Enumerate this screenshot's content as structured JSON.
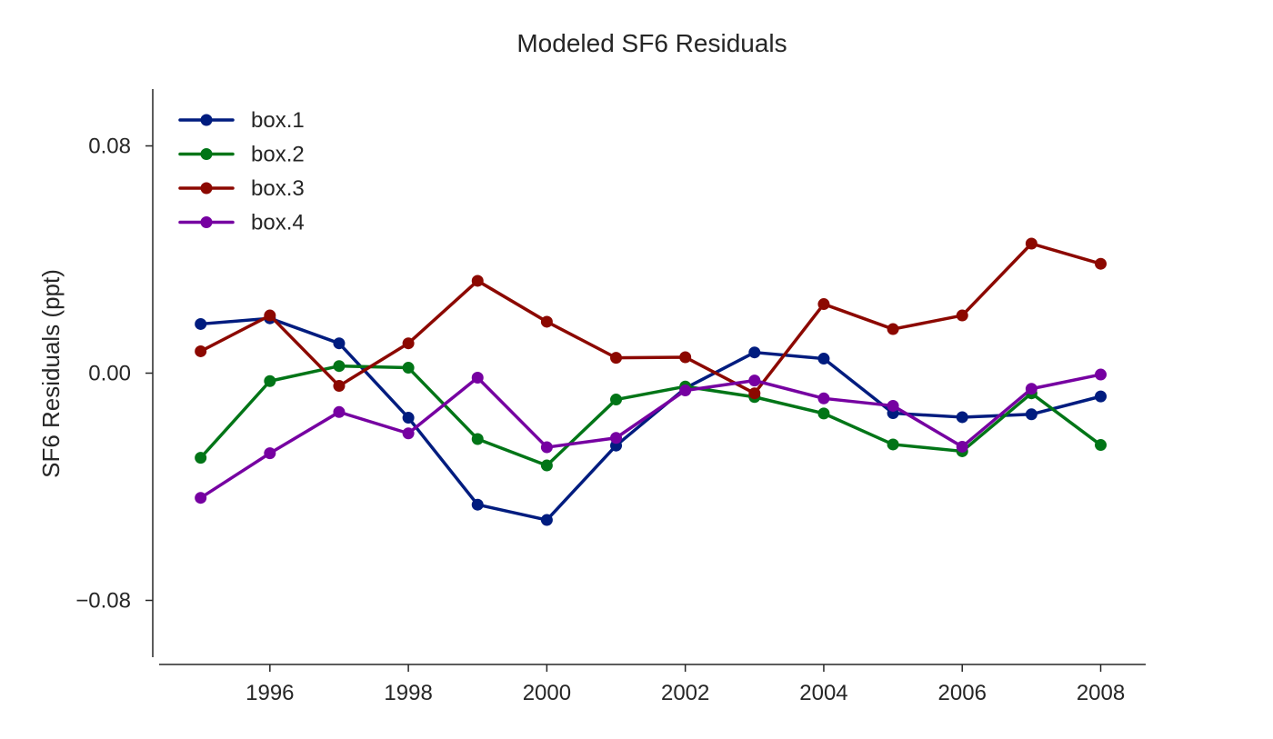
{
  "chart_data": {
    "type": "line",
    "title": "Modeled SF6 Residuals",
    "xlabel": "",
    "ylabel": "SF6 Residuals (ppt)",
    "x": [
      1995,
      1996,
      1997,
      1998,
      1999,
      2000,
      2001,
      2002,
      2003,
      2004,
      2005,
      2006,
      2007,
      2008
    ],
    "xlim": [
      1994.4,
      2008.65
    ],
    "ylim": [
      -0.1,
      0.1
    ],
    "x_ticks": [
      1996,
      1998,
      2000,
      2002,
      2004,
      2006,
      2008
    ],
    "x_tick_labels": [
      "1996",
      "1998",
      "2000",
      "2002",
      "2004",
      "2006",
      "2008"
    ],
    "y_ticks": [
      0.08,
      0.0,
      -0.08
    ],
    "y_tick_labels": [
      "0.08",
      "0.00",
      "−0.08"
    ],
    "grid": false,
    "legend_position": "top-left",
    "series": [
      {
        "name": "box.1",
        "color": "#001c7f",
        "values": [
          0.0173,
          0.0193,
          0.0105,
          -0.0157,
          -0.0463,
          -0.0517,
          -0.0255,
          -0.0053,
          0.0073,
          0.0051,
          -0.0141,
          -0.0155,
          -0.0145,
          -0.0082
        ]
      },
      {
        "name": "box.2",
        "color": "#017517",
        "values": [
          -0.0298,
          -0.0028,
          0.0025,
          0.0019,
          -0.0232,
          -0.0325,
          -0.0093,
          -0.0047,
          -0.0084,
          -0.0142,
          -0.0251,
          -0.0275,
          -0.0071,
          -0.0253
        ]
      },
      {
        "name": "box.3",
        "color": "#8c0800",
        "values": [
          0.0077,
          0.0203,
          -0.0045,
          0.0105,
          0.0325,
          0.0181,
          0.0054,
          0.0056,
          -0.0071,
          0.0243,
          0.0155,
          0.0203,
          0.0456,
          0.0385
        ]
      },
      {
        "name": "box.4",
        "color": "#7600a1",
        "values": [
          -0.0439,
          -0.0282,
          -0.0137,
          -0.0212,
          -0.0016,
          -0.0261,
          -0.0228,
          -0.0061,
          -0.0026,
          -0.0089,
          -0.0115,
          -0.0259,
          -0.0055,
          -0.0005
        ]
      }
    ]
  }
}
